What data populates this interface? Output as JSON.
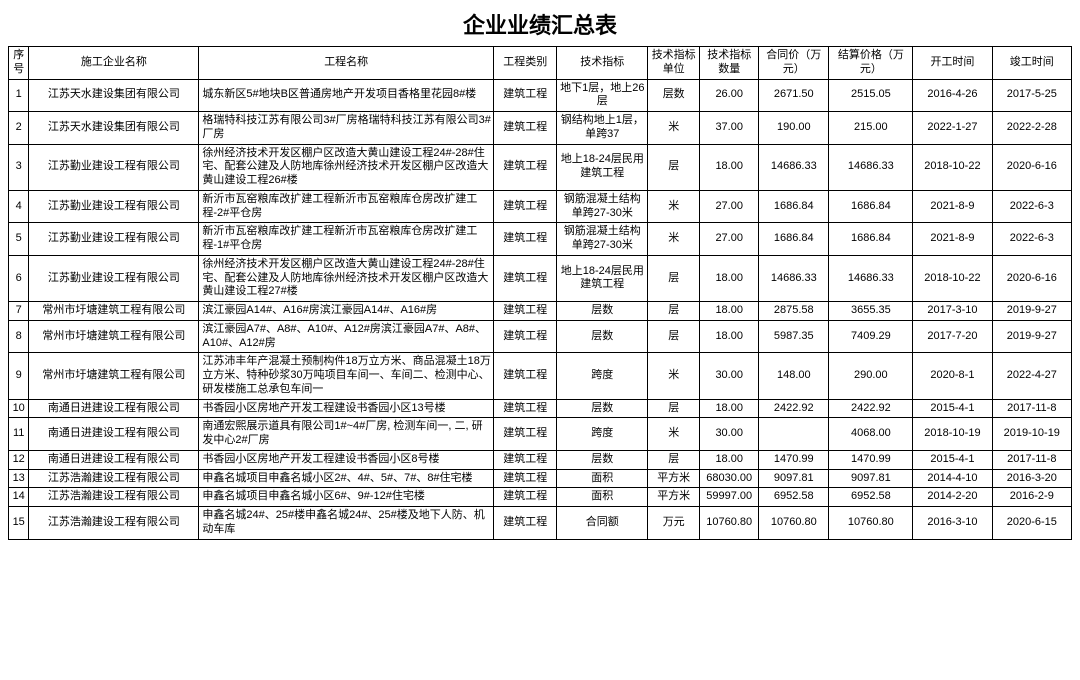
{
  "title": "企业业绩汇总表",
  "columns": [
    {
      "key": "seq",
      "label": "序号"
    },
    {
      "key": "enterprise",
      "label": "施工企业名称"
    },
    {
      "key": "project",
      "label": "工程名称"
    },
    {
      "key": "type",
      "label": "工程类别"
    },
    {
      "key": "indicator",
      "label": "技术指标"
    },
    {
      "key": "unit",
      "label": "技术指标单位"
    },
    {
      "key": "qty",
      "label": "技术指标数量"
    },
    {
      "key": "contract",
      "label": "合同价（万元）"
    },
    {
      "key": "settlement",
      "label": "结算价格（万元）"
    },
    {
      "key": "start",
      "label": "开工时间"
    },
    {
      "key": "end",
      "label": "竣工时间"
    }
  ],
  "rows": [
    {
      "seq": "1",
      "enterprise": "江苏天水建设集团有限公司",
      "project": "城东新区5#地块B区普通房地产开发项目香格里花园8#楼",
      "type": "建筑工程",
      "indicator": "地下1层，地上26层",
      "unit": "层数",
      "qty": "26.00",
      "contract": "2671.50",
      "settlement": "2515.05",
      "start": "2016-4-26",
      "end": "2017-5-25"
    },
    {
      "seq": "2",
      "enterprise": "江苏天水建设集团有限公司",
      "project": "格瑞特科技江苏有限公司3#厂房格瑞特科技江苏有限公司3#厂房",
      "type": "建筑工程",
      "indicator": "钢结构地上1层，单跨37",
      "unit": "米",
      "qty": "37.00",
      "contract": "190.00",
      "settlement": "215.00",
      "start": "2022-1-27",
      "end": "2022-2-28"
    },
    {
      "seq": "3",
      "enterprise": "江苏勤业建设工程有限公司",
      "project": "徐州经济技术开发区棚户区改造大黄山建设工程24#-28#住宅、配套公建及人防地库徐州经济技术开发区棚户区改造大黄山建设工程26#楼",
      "type": "建筑工程",
      "indicator": "地上18-24层民用建筑工程",
      "unit": "层",
      "qty": "18.00",
      "contract": "14686.33",
      "settlement": "14686.33",
      "start": "2018-10-22",
      "end": "2020-6-16"
    },
    {
      "seq": "4",
      "enterprise": "江苏勤业建设工程有限公司",
      "project": "新沂市瓦窑粮库改扩建工程新沂市瓦窑粮库仓房改扩建工程-2#平仓房",
      "type": "建筑工程",
      "indicator": "钢筋混凝土结构单跨27-30米",
      "unit": "米",
      "qty": "27.00",
      "contract": "1686.84",
      "settlement": "1686.84",
      "start": "2021-8-9",
      "end": "2022-6-3"
    },
    {
      "seq": "5",
      "enterprise": "江苏勤业建设工程有限公司",
      "project": "新沂市瓦窑粮库改扩建工程新沂市瓦窑粮库仓房改扩建工程-1#平仓房",
      "type": "建筑工程",
      "indicator": "钢筋混凝土结构单跨27-30米",
      "unit": "米",
      "qty": "27.00",
      "contract": "1686.84",
      "settlement": "1686.84",
      "start": "2021-8-9",
      "end": "2022-6-3"
    },
    {
      "seq": "6",
      "enterprise": "江苏勤业建设工程有限公司",
      "project": "徐州经济技术开发区棚户区改造大黄山建设工程24#-28#住宅、配套公建及人防地库徐州经济技术开发区棚户区改造大黄山建设工程27#楼",
      "type": "建筑工程",
      "indicator": "地上18-24层民用建筑工程",
      "unit": "层",
      "qty": "18.00",
      "contract": "14686.33",
      "settlement": "14686.33",
      "start": "2018-10-22",
      "end": "2020-6-16"
    },
    {
      "seq": "7",
      "enterprise": "常州市圩塘建筑工程有限公司",
      "project": "滨江豪园A14#、A16#房滨江豪园A14#、A16#房",
      "type": "建筑工程",
      "indicator": "层数",
      "unit": "层",
      "qty": "18.00",
      "contract": "2875.58",
      "settlement": "3655.35",
      "start": "2017-3-10",
      "end": "2019-9-27"
    },
    {
      "seq": "8",
      "enterprise": "常州市圩塘建筑工程有限公司",
      "project": "滨江豪园A7#、A8#、A10#、A12#房滨江豪园A7#、A8#、A10#、A12#房",
      "type": "建筑工程",
      "indicator": "层数",
      "unit": "层",
      "qty": "18.00",
      "contract": "5987.35",
      "settlement": "7409.29",
      "start": "2017-7-20",
      "end": "2019-9-27"
    },
    {
      "seq": "9",
      "enterprise": "常州市圩塘建筑工程有限公司",
      "project": "江苏沛丰年产混凝土预制构件18万立方米、商品混凝土18万立方米、特种砂浆30万吨项目车间一、车间二、检测中心、研发楼施工总承包车间一",
      "type": "建筑工程",
      "indicator": "跨度",
      "unit": "米",
      "qty": "30.00",
      "contract": "148.00",
      "settlement": "290.00",
      "start": "2020-8-1",
      "end": "2022-4-27"
    },
    {
      "seq": "10",
      "enterprise": "南通日进建设工程有限公司",
      "project": "书香园小区房地产开发工程建设书香园小区13号楼",
      "type": "建筑工程",
      "indicator": "层数",
      "unit": "层",
      "qty": "18.00",
      "contract": "2422.92",
      "settlement": "2422.92",
      "start": "2015-4-1",
      "end": "2017-11-8"
    },
    {
      "seq": "11",
      "enterprise": "南通日进建设工程有限公司",
      "project": "南通宏熙展示道具有限公司1#~4#厂房, 检测车间一, 二, 研发中心2#厂房",
      "type": "建筑工程",
      "indicator": "跨度",
      "unit": "米",
      "qty": "30.00",
      "contract": "",
      "settlement": "4068.00",
      "start": "2018-10-19",
      "end": "2019-10-19"
    },
    {
      "seq": "12",
      "enterprise": "南通日进建设工程有限公司",
      "project": "书香园小区房地产开发工程建设书香园小区8号楼",
      "type": "建筑工程",
      "indicator": "层数",
      "unit": "层",
      "qty": "18.00",
      "contract": "1470.99",
      "settlement": "1470.99",
      "start": "2015-4-1",
      "end": "2017-11-8"
    },
    {
      "seq": "13",
      "enterprise": "江苏浩瀚建设工程有限公司",
      "project": "申鑫名城项目申鑫名城小区2#、4#、5#、7#、8#住宅楼",
      "type": "建筑工程",
      "indicator": "面积",
      "unit": "平方米",
      "qty": "68030.00",
      "contract": "9097.81",
      "settlement": "9097.81",
      "start": "2014-4-10",
      "end": "2016-3-20"
    },
    {
      "seq": "14",
      "enterprise": "江苏浩瀚建设工程有限公司",
      "project": "申鑫名城项目申鑫名城小区6#、9#-12#住宅楼",
      "type": "建筑工程",
      "indicator": "面积",
      "unit": "平方米",
      "qty": "59997.00",
      "contract": "6952.58",
      "settlement": "6952.58",
      "start": "2014-2-20",
      "end": "2016-2-9"
    },
    {
      "seq": "15",
      "enterprise": "江苏浩瀚建设工程有限公司",
      "project": "申鑫名城24#、25#楼申鑫名城24#、25#楼及地下人防、机动车库",
      "type": "建筑工程",
      "indicator": "合同额",
      "unit": "万元",
      "qty": "10760.80",
      "contract": "10760.80",
      "settlement": "10760.80",
      "start": "2016-3-10",
      "end": "2020-6-15"
    }
  ],
  "style": {
    "border_color": "#000000",
    "text_color": "#000000",
    "background_color": "#ffffff",
    "title_fontsize": 22,
    "cell_fontsize": 11
  }
}
